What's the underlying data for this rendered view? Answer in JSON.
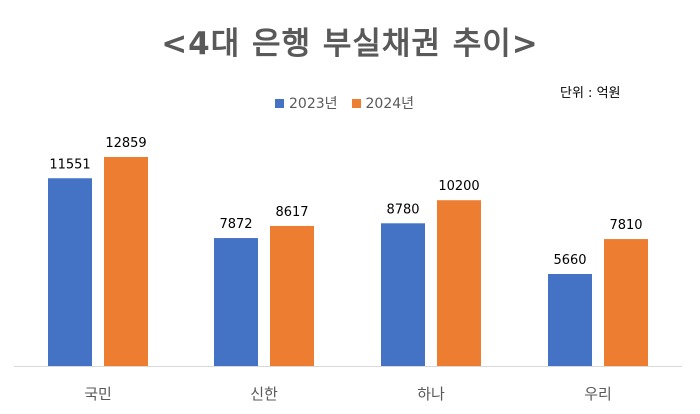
{
  "title": "<4대 은행 부실채권 추이>",
  "unit_label": "단위 : 억원",
  "chart_data": {
    "type": "bar",
    "title": "<4대 은행 부실채권 추이>",
    "xlabel": "",
    "ylabel": "",
    "categories": [
      "국민",
      "신한",
      "하나",
      "우리"
    ],
    "series": [
      {
        "name": "2023년",
        "color": "#4472C4",
        "values": [
          11551,
          7872,
          8780,
          5660
        ]
      },
      {
        "name": "2024년",
        "color": "#ED7D31",
        "values": [
          12859,
          8617,
          10200,
          7810
        ]
      }
    ],
    "ylim": [
      0,
      14000
    ],
    "grid": false,
    "legend_position": "top"
  }
}
